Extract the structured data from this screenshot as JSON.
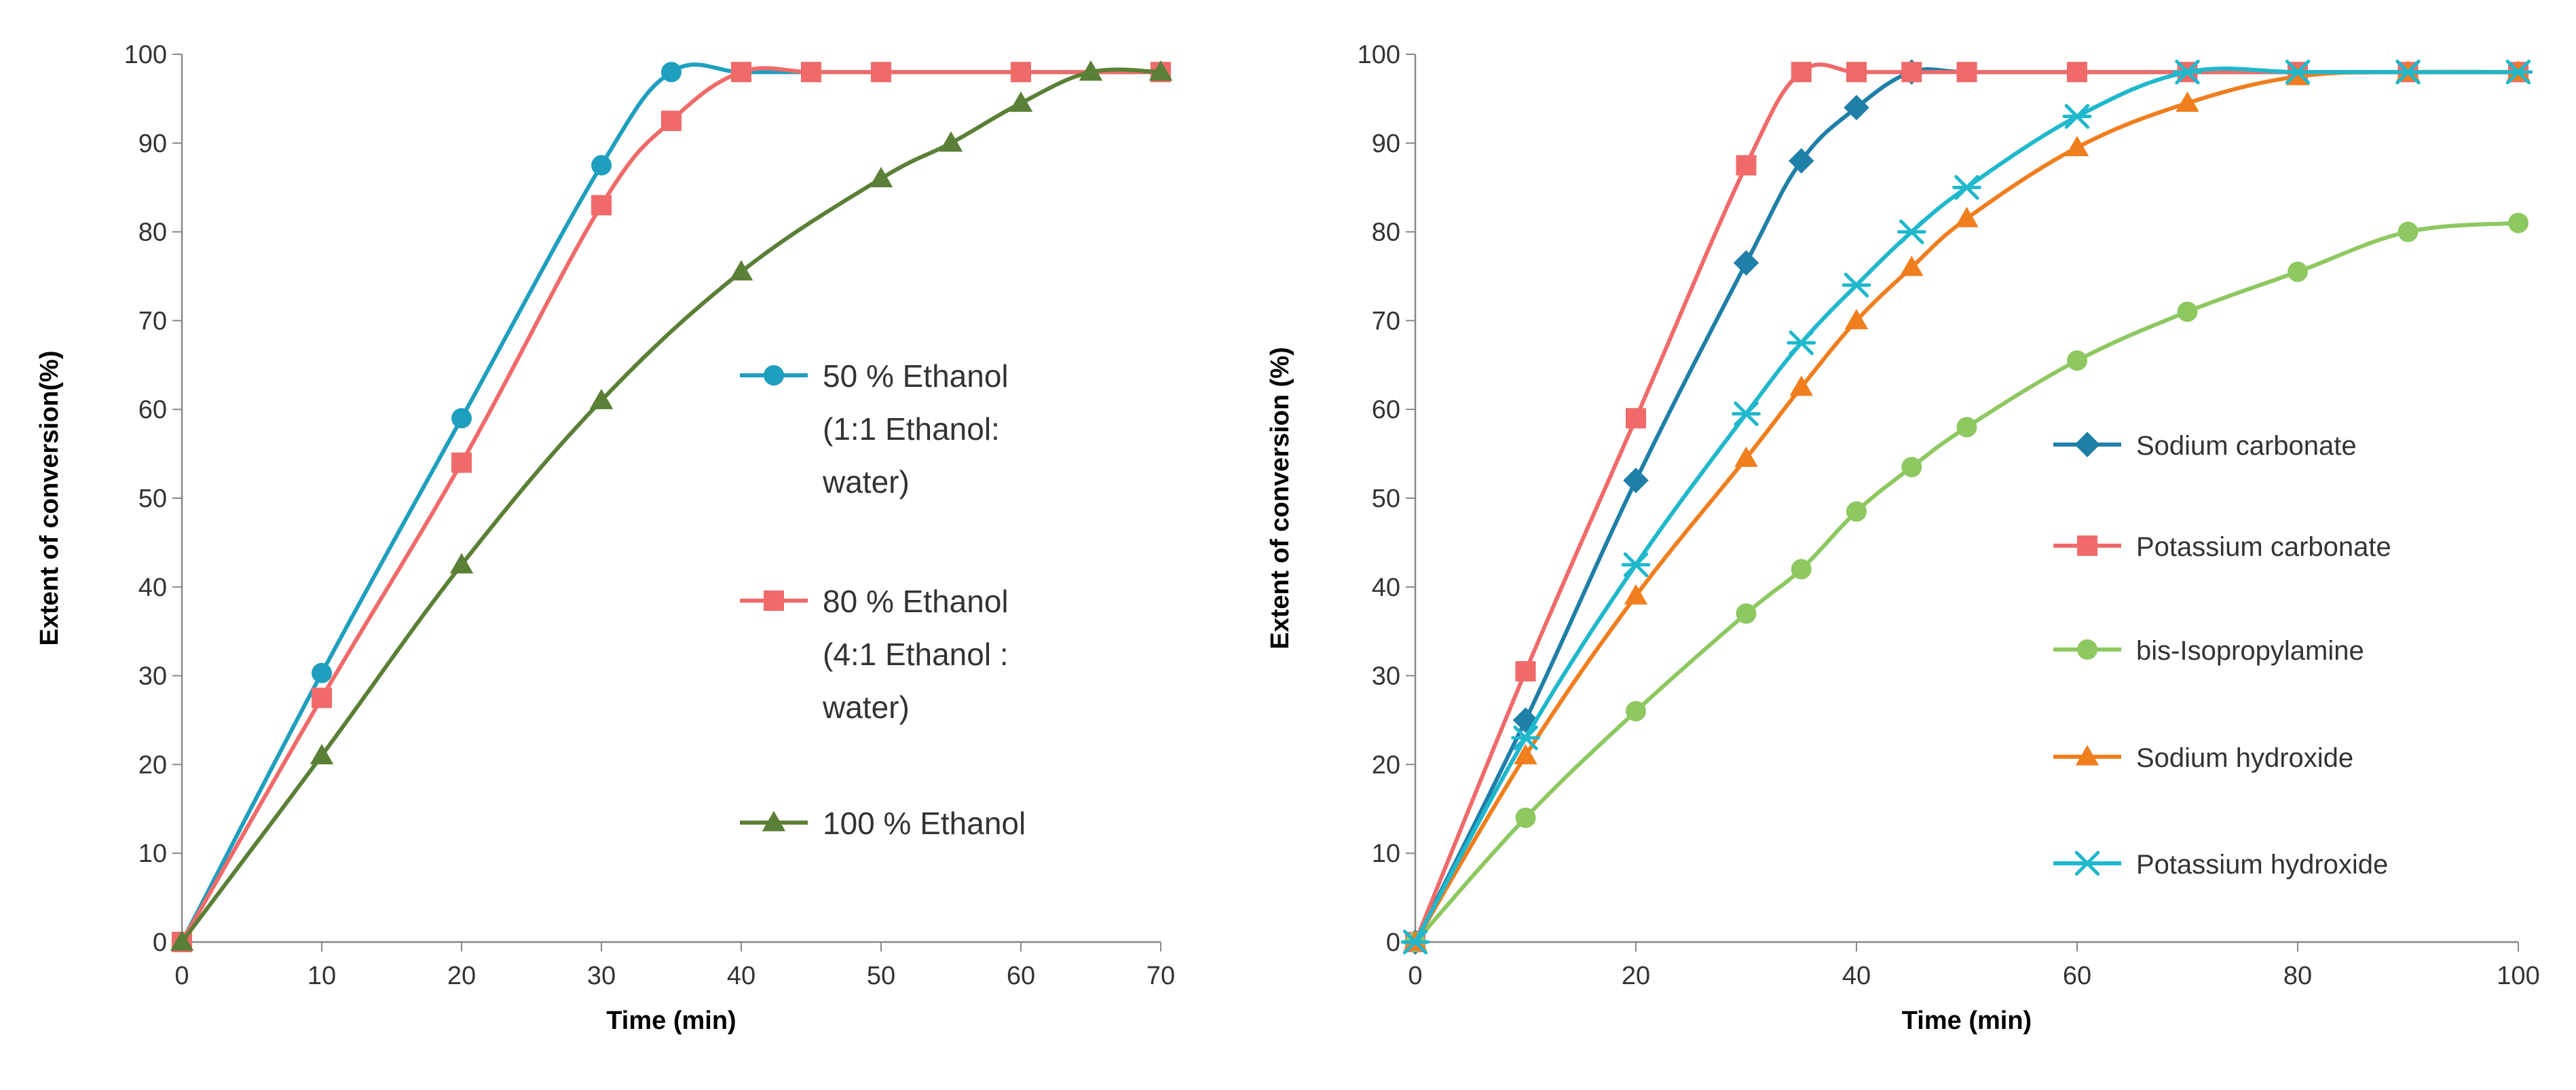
{
  "chart_data": [
    {
      "type": "line",
      "title": "",
      "xlabel": "Time  (min)",
      "ylabel": "Extent of conversion(%)",
      "xlim": [
        0,
        70
      ],
      "ylim": [
        0,
        100
      ],
      "xticks": [
        "0",
        "10",
        "20",
        "30",
        "40",
        "50",
        "60",
        "70"
      ],
      "yticks": [
        "0",
        "10",
        "20",
        "30",
        "40",
        "50",
        "60",
        "70",
        "80",
        "90",
        "100"
      ],
      "legend_position": "right",
      "series": [
        {
          "name": "50 % Ethanol (1:1 Ethanol: water)",
          "legend_lines": [
            "50 % Ethanol",
            "(1:1 Ethanol:",
            "water)"
          ],
          "color": "#1F9FBF",
          "marker": "circle",
          "x": [
            0,
            10,
            20,
            30,
            35,
            40,
            45,
            50,
            60,
            70
          ],
          "y": [
            0,
            30.3,
            59,
            87.5,
            98,
            98,
            98,
            98,
            98,
            98
          ],
          "marker_x": [
            0,
            10,
            20,
            30,
            35,
            40
          ],
          "marker_y": [
            0,
            30.3,
            59,
            87.5,
            98,
            98
          ]
        },
        {
          "name": "80 % Ethanol (4:1 Ethanol : water)",
          "legend_lines": [
            "80 % Ethanol",
            "(4:1 Ethanol :",
            "water)"
          ],
          "color": "#F06A6A",
          "marker": "square",
          "x": [
            0,
            10,
            20,
            30,
            35,
            40,
            45,
            50,
            60,
            70
          ],
          "y": [
            0,
            27.5,
            54,
            83,
            92.5,
            98,
            98,
            98,
            98,
            98
          ],
          "marker_x": [
            0,
            10,
            20,
            30,
            35,
            40,
            45,
            50,
            60,
            70
          ],
          "marker_y": [
            0,
            27.5,
            54,
            83,
            92.5,
            98,
            98,
            98,
            98,
            98
          ]
        },
        {
          "name": "100 % Ethanol",
          "legend_lines": [
            "100 % Ethanol"
          ],
          "color": "#5A7F36",
          "marker": "triangle",
          "x": [
            0,
            10,
            20,
            30,
            40,
            50,
            55,
            60,
            65,
            70
          ],
          "y": [
            0,
            21,
            42.5,
            61,
            75.5,
            86,
            90,
            94.5,
            98,
            98
          ],
          "marker_x": [
            0,
            10,
            20,
            30,
            40,
            50,
            55,
            60,
            65,
            70
          ],
          "marker_y": [
            0,
            21,
            42.5,
            61,
            75.5,
            86,
            90,
            94.5,
            98,
            98
          ]
        }
      ]
    },
    {
      "type": "line",
      "title": "",
      "xlabel": "Time (min)",
      "ylabel": "Extent of conversion (%)",
      "xlim": [
        0,
        100
      ],
      "ylim": [
        0,
        100
      ],
      "xticks": [
        "0",
        "20",
        "40",
        "60",
        "80",
        "100"
      ],
      "yticks": [
        "0",
        "10",
        "20",
        "30",
        "40",
        "50",
        "60",
        "70",
        "80",
        "90",
        "100"
      ],
      "legend_position": "right",
      "series": [
        {
          "name": "Sodium carbonate",
          "legend_lines": [
            "Sodium carbonate"
          ],
          "color": "#1F7FA8",
          "marker": "diamond",
          "x": [
            0,
            10,
            20,
            30,
            35,
            40,
            45,
            50,
            60,
            70,
            80,
            90,
            100
          ],
          "y": [
            0,
            25,
            52,
            76.5,
            88,
            94,
            98,
            98,
            98,
            98,
            98,
            98,
            98
          ],
          "marker_x": [
            0,
            10,
            20,
            30,
            35,
            40,
            45
          ],
          "marker_y": [
            0,
            25,
            52,
            76.5,
            88,
            94,
            98
          ]
        },
        {
          "name": "Potassium carbonate",
          "legend_lines": [
            "Potassium carbonate"
          ],
          "color": "#F06A6A",
          "marker": "square",
          "x": [
            0,
            10,
            20,
            30,
            35,
            40,
            45,
            50,
            60,
            70,
            80,
            90,
            100
          ],
          "y": [
            0,
            30.5,
            59,
            87.5,
            98,
            98,
            98,
            98,
            98,
            98,
            98,
            98,
            98
          ],
          "marker_x": [
            0,
            10,
            20,
            30,
            35,
            40,
            45,
            50,
            60,
            70,
            80,
            90,
            100
          ],
          "marker_y": [
            0,
            30.5,
            59,
            87.5,
            98,
            98,
            98,
            98,
            98,
            98,
            98,
            98,
            98
          ]
        },
        {
          "name": "bis-Isopropylamine",
          "legend_lines": [
            "bis-Isopropylamine"
          ],
          "color": "#8DC860",
          "marker": "circle",
          "x": [
            0,
            10,
            20,
            30,
            35,
            40,
            45,
            50,
            60,
            70,
            80,
            90,
            100
          ],
          "y": [
            0,
            14,
            26,
            37,
            42,
            48.5,
            53.5,
            58,
            65.5,
            71,
            75.5,
            80,
            81
          ],
          "marker_x": [
            0,
            10,
            20,
            30,
            35,
            40,
            45,
            50,
            60,
            70,
            80,
            90,
            100
          ],
          "marker_y": [
            0,
            14,
            26,
            37,
            42,
            48.5,
            53.5,
            58,
            65.5,
            71,
            75.5,
            80,
            81
          ]
        },
        {
          "name": "Sodium hydroxide",
          "legend_lines": [
            "Sodium hydroxide"
          ],
          "color": "#F07E1E",
          "marker": "triangle",
          "x": [
            0,
            10,
            20,
            30,
            35,
            40,
            45,
            50,
            60,
            70,
            80,
            90,
            100
          ],
          "y": [
            0,
            21,
            39,
            54.5,
            62.5,
            70,
            76,
            81.5,
            89.5,
            94.5,
            97.5,
            98,
            98
          ],
          "marker_x": [
            0,
            10,
            20,
            30,
            35,
            40,
            45,
            50,
            60,
            70,
            80,
            90,
            100
          ],
          "marker_y": [
            0,
            21,
            39,
            54.5,
            62.5,
            70,
            76,
            81.5,
            89.5,
            94.5,
            97.5,
            98,
            98
          ]
        },
        {
          "name": "Potassium hydroxide",
          "legend_lines": [
            "Potassium hydroxide"
          ],
          "color": "#1FB8CC",
          "marker": "star",
          "x": [
            0,
            10,
            20,
            30,
            35,
            40,
            45,
            50,
            60,
            70,
            80,
            90,
            100
          ],
          "y": [
            0,
            23,
            42.5,
            59.5,
            67.5,
            74,
            80,
            85,
            93,
            98,
            98,
            98,
            98
          ],
          "marker_x": [
            0,
            10,
            20,
            30,
            35,
            40,
            45,
            50,
            60,
            70,
            80,
            90,
            100
          ],
          "marker_y": [
            0,
            23,
            42.5,
            59.5,
            67.5,
            74,
            80,
            85,
            93,
            98,
            98,
            98,
            98
          ]
        }
      ]
    }
  ]
}
